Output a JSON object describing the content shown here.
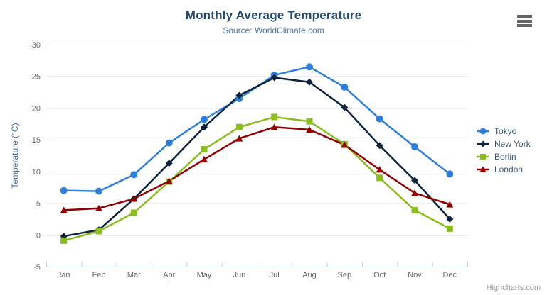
{
  "header": {
    "title": "Monthly Average Temperature",
    "subtitle": "Source: WorldClimate.com"
  },
  "menu": {
    "icon": "hamburger-menu-icon"
  },
  "credits": {
    "label": "Highcharts.com"
  },
  "colors": {
    "title": "#274b6d",
    "subtitle": "#4d759e",
    "axis_label": "#666666",
    "yaxis_title": "#4572a7",
    "gridline": "#d8d8d8",
    "axis_line": "#c0d0e0",
    "legend_text": "#3e576f",
    "credits_text": "#999999",
    "menu_icon": "#666666"
  },
  "chart_data": {
    "type": "line",
    "title": "Monthly Average Temperature",
    "subtitle": "Source: WorldClimate.com",
    "categories": [
      "Jan",
      "Feb",
      "Mar",
      "Apr",
      "May",
      "Jun",
      "Jul",
      "Aug",
      "Sep",
      "Oct",
      "Nov",
      "Dec"
    ],
    "xlabel": "",
    "ylabel": "Temperature (°C)",
    "ylim": [
      -5,
      30
    ],
    "yticks": [
      -5,
      0,
      5,
      10,
      15,
      20,
      25,
      30
    ],
    "grid": "horizontal-only",
    "legend_position": "right-middle",
    "series": [
      {
        "name": "Tokyo",
        "color": "#2f7ed8",
        "marker": "circle",
        "values": [
          7.0,
          6.9,
          9.5,
          14.5,
          18.2,
          21.5,
          25.2,
          26.5,
          23.3,
          18.3,
          13.9,
          9.6
        ]
      },
      {
        "name": "New York",
        "color": "#0d233a",
        "marker": "diamond",
        "values": [
          -0.2,
          0.8,
          5.7,
          11.3,
          17.0,
          22.0,
          24.8,
          24.1,
          20.1,
          14.1,
          8.6,
          2.5
        ]
      },
      {
        "name": "Berlin",
        "color": "#8bbc21",
        "marker": "square",
        "values": [
          -0.9,
          0.6,
          3.5,
          8.4,
          13.5,
          17.0,
          18.6,
          17.9,
          14.3,
          9.0,
          3.9,
          1.0
        ]
      },
      {
        "name": "London",
        "color": "#910000",
        "marker": "triangle",
        "values": [
          3.9,
          4.2,
          5.7,
          8.5,
          11.9,
          15.2,
          17.0,
          16.6,
          14.2,
          10.3,
          6.6,
          4.8
        ]
      }
    ]
  }
}
